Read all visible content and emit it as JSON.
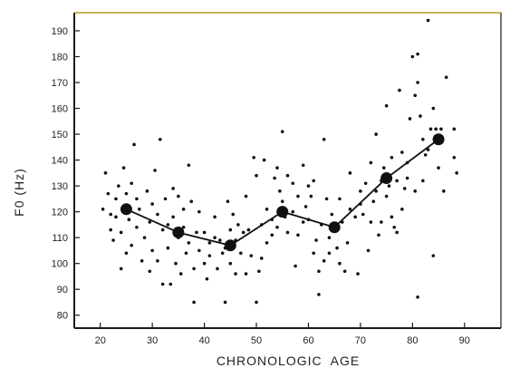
{
  "chart_data": {
    "type": "scatter",
    "title": "",
    "xlabel": "CHRONOLOGIC  AGE",
    "ylabel": "F0 (Hz)",
    "xlim": [
      15,
      97
    ],
    "ylim": [
      75,
      197
    ],
    "x_ticks": [
      20,
      30,
      40,
      50,
      60,
      70,
      80,
      90
    ],
    "y_ticks": [
      80,
      90,
      100,
      110,
      120,
      130,
      140,
      150,
      160,
      170,
      180,
      190
    ],
    "grid": false,
    "frame_color": "#1a1a1a",
    "top_frame_color": "#b8a020",
    "point_color": "#111111",
    "series": [
      {
        "kind": "mean-line",
        "x": [
          25,
          35,
          45,
          55,
          65,
          75,
          85
        ],
        "y": [
          121,
          112,
          107,
          120,
          114,
          133,
          148
        ]
      },
      {
        "kind": "scatter",
        "points": [
          [
            20.5,
            121
          ],
          [
            21,
            135
          ],
          [
            21.5,
            127
          ],
          [
            22,
            119
          ],
          [
            22,
            113
          ],
          [
            22.5,
            109
          ],
          [
            23,
            125
          ],
          [
            23,
            118
          ],
          [
            23.5,
            130
          ],
          [
            24,
            112
          ],
          [
            24,
            98
          ],
          [
            24.5,
            137
          ],
          [
            25,
            127
          ],
          [
            25,
            104
          ],
          [
            25.5,
            117
          ],
          [
            26,
            131
          ],
          [
            26,
            107
          ],
          [
            26.5,
            146
          ],
          [
            27,
            125
          ],
          [
            27,
            114
          ],
          [
            27.5,
            121
          ],
          [
            28,
            101
          ],
          [
            28.5,
            110
          ],
          [
            29,
            128
          ],
          [
            29.5,
            116
          ],
          [
            29.5,
            97
          ],
          [
            30,
            123
          ],
          [
            30,
            105
          ],
          [
            30.5,
            136
          ],
          [
            31,
            119
          ],
          [
            31,
            101
          ],
          [
            31.5,
            148
          ],
          [
            32,
            113
          ],
          [
            32,
            92
          ],
          [
            32.5,
            125
          ],
          [
            33,
            115
          ],
          [
            33,
            106
          ],
          [
            33.5,
            92
          ],
          [
            34,
            129
          ],
          [
            34,
            118
          ],
          [
            34.5,
            100
          ],
          [
            35,
            126
          ],
          [
            35,
            110
          ],
          [
            35.5,
            96
          ],
          [
            36,
            121
          ],
          [
            36,
            114
          ],
          [
            36.5,
            104
          ],
          [
            37,
            138
          ],
          [
            37,
            108
          ],
          [
            37.5,
            124
          ],
          [
            38,
            98
          ],
          [
            38,
            85
          ],
          [
            38.5,
            112
          ],
          [
            39,
            105
          ],
          [
            39,
            120
          ],
          [
            40,
            112
          ],
          [
            40,
            100
          ],
          [
            40.5,
            94
          ],
          [
            41,
            103
          ],
          [
            41,
            108
          ],
          [
            42,
            110
          ],
          [
            42,
            118
          ],
          [
            42.5,
            98
          ],
          [
            43,
            109
          ],
          [
            43.5,
            104
          ],
          [
            44,
            106
          ],
          [
            44,
            85
          ],
          [
            44.5,
            124
          ],
          [
            45,
            113
          ],
          [
            45,
            100
          ],
          [
            45.5,
            119
          ],
          [
            46,
            109
          ],
          [
            46,
            96
          ],
          [
            46.5,
            115
          ],
          [
            47,
            104
          ],
          [
            47.5,
            112
          ],
          [
            48,
            126
          ],
          [
            48,
            96
          ],
          [
            48.5,
            113
          ],
          [
            49,
            103
          ],
          [
            49.5,
            141
          ],
          [
            50,
            134
          ],
          [
            50,
            85
          ],
          [
            50.5,
            97
          ],
          [
            51,
            115
          ],
          [
            51,
            102
          ],
          [
            51.5,
            140
          ],
          [
            52,
            121
          ],
          [
            52,
            108
          ],
          [
            53,
            117
          ],
          [
            53,
            111
          ],
          [
            53.5,
            133
          ],
          [
            54,
            137
          ],
          [
            54,
            114
          ],
          [
            54.5,
            128
          ],
          [
            55,
            151
          ],
          [
            55,
            124
          ],
          [
            55.5,
            118
          ],
          [
            56,
            112
          ],
          [
            56,
            134
          ],
          [
            57,
            120
          ],
          [
            57,
            131
          ],
          [
            57.5,
            99
          ],
          [
            58,
            126
          ],
          [
            58,
            111
          ],
          [
            59,
            138
          ],
          [
            59,
            116
          ],
          [
            59.5,
            122
          ],
          [
            60,
            117
          ],
          [
            60,
            130
          ],
          [
            60.5,
            126
          ],
          [
            61,
            104
          ],
          [
            61,
            132
          ],
          [
            61.5,
            109
          ],
          [
            62,
            97
          ],
          [
            62,
            88
          ],
          [
            62.5,
            115
          ],
          [
            63,
            148
          ],
          [
            63,
            101
          ],
          [
            63.5,
            125
          ],
          [
            64,
            110
          ],
          [
            64,
            104
          ],
          [
            64.5,
            119
          ],
          [
            65,
            113
          ],
          [
            65.5,
            106
          ],
          [
            66,
            125
          ],
          [
            66,
            100
          ],
          [
            66.5,
            116
          ],
          [
            67,
            97
          ],
          [
            67.5,
            108
          ],
          [
            68,
            121
          ],
          [
            68,
            135
          ],
          [
            69,
            118
          ],
          [
            69.5,
            96
          ],
          [
            70,
            123
          ],
          [
            70,
            128
          ],
          [
            70.5,
            119
          ],
          [
            71,
            131
          ],
          [
            71.5,
            105
          ],
          [
            72,
            139
          ],
          [
            72,
            116
          ],
          [
            72.5,
            124
          ],
          [
            73,
            150
          ],
          [
            73,
            128
          ],
          [
            73.5,
            111
          ],
          [
            74,
            132
          ],
          [
            74,
            116
          ],
          [
            74.5,
            137
          ],
          [
            75,
            161
          ],
          [
            75,
            126
          ],
          [
            75.5,
            130
          ],
          [
            76,
            118
          ],
          [
            76,
            141
          ],
          [
            76.5,
            114
          ],
          [
            77,
            132
          ],
          [
            77,
            112
          ],
          [
            77.5,
            167
          ],
          [
            78,
            143
          ],
          [
            78,
            121
          ],
          [
            78.5,
            129
          ],
          [
            79,
            139
          ],
          [
            79,
            133
          ],
          [
            79.5,
            156
          ],
          [
            80,
            180
          ],
          [
            80.5,
            165
          ],
          [
            80.5,
            128
          ],
          [
            81,
            181
          ],
          [
            81,
            170
          ],
          [
            81,
            87
          ],
          [
            81.5,
            157
          ],
          [
            82,
            148
          ],
          [
            82,
            132
          ],
          [
            82.5,
            142
          ],
          [
            83,
            194
          ],
          [
            83,
            144
          ],
          [
            83.5,
            152
          ],
          [
            84,
            103
          ],
          [
            84,
            160
          ],
          [
            84.5,
            152
          ],
          [
            85,
            137
          ],
          [
            85.5,
            152
          ],
          [
            86,
            128
          ],
          [
            86.5,
            172
          ],
          [
            88,
            152
          ],
          [
            88,
            141
          ],
          [
            88.5,
            135
          ]
        ]
      }
    ]
  }
}
